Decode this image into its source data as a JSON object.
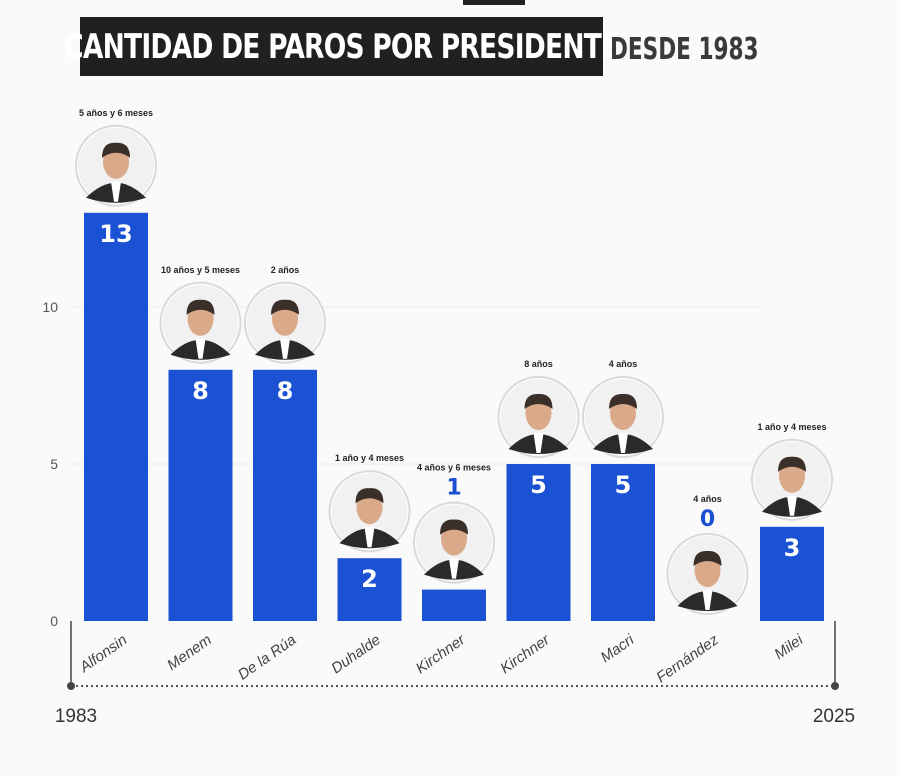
{
  "header": {
    "title": "CANTIDAD DE PAROS POR PRESIDENTE",
    "subtitle": "DESDE 1983"
  },
  "chart_data": {
    "type": "bar",
    "title": "CANTIDAD DE PAROS POR PRESIDENTE",
    "subtitle": "DESDE 1983",
    "categories": [
      "Alfonsin",
      "Menem",
      "De la Rúa",
      "Duhalde",
      "Kirchner",
      "Kirchner",
      "Macri",
      "Fernández",
      "Milei"
    ],
    "values": [
      13,
      8,
      8,
      2,
      1,
      5,
      5,
      0,
      3
    ],
    "durations": [
      "5 años y 6 meses",
      "10 años y 5 meses",
      "2 años",
      "1 año y 4 meses",
      "4 años y 6 meses",
      "8 años",
      "4 años",
      "4 años",
      "1 año y 4 meses"
    ],
    "ylim": [
      0,
      13
    ],
    "yticks": [
      0,
      5,
      10
    ],
    "grid": true,
    "timeline": {
      "start": "1983",
      "end": "2025"
    },
    "bar_color": "#1b52d4",
    "value_label_inside_color": "#ffffff",
    "value_label_outside_color": "#1a4fd0"
  }
}
